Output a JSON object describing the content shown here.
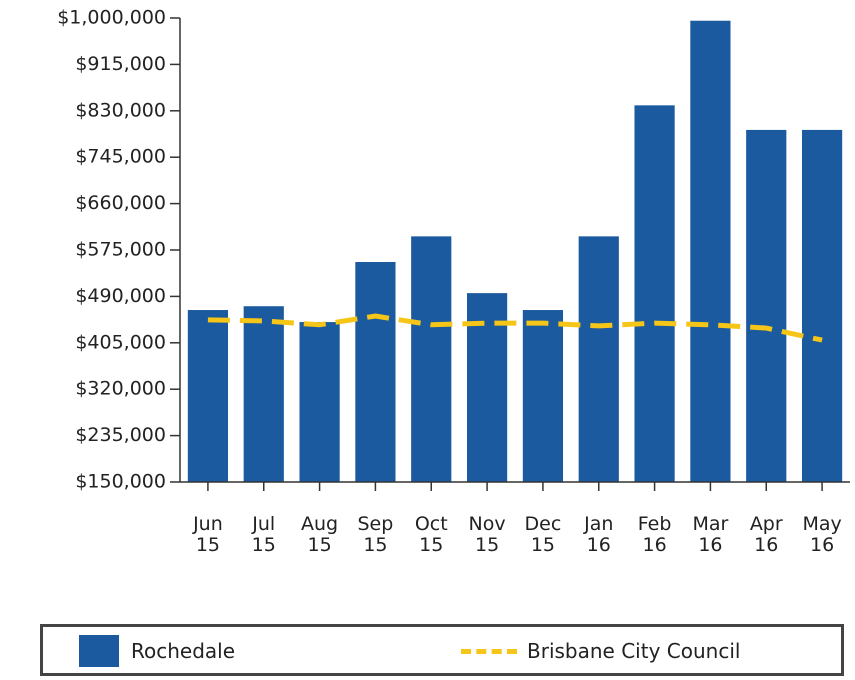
{
  "chart_data": {
    "type": "bar",
    "categories": [
      "Jun 15",
      "Jul 15",
      "Aug 15",
      "Sep 15",
      "Oct 15",
      "Nov 15",
      "Dec 15",
      "Jan 16",
      "Feb 16",
      "Mar 16",
      "Apr 16",
      "May 16"
    ],
    "series": [
      {
        "name": "Rochedale",
        "type": "bar",
        "color": "#1b5a9e",
        "values": [
          465000,
          472000,
          443000,
          553000,
          600000,
          496000,
          465000,
          600000,
          840000,
          995000,
          795000,
          795000
        ]
      },
      {
        "name": "Brisbane City Council",
        "type": "line",
        "color": "#f5c518",
        "values": [
          447000,
          445000,
          438000,
          454000,
          438000,
          441000,
          441000,
          436000,
          441000,
          438000,
          432000,
          410000
        ]
      }
    ],
    "ylim": [
      150000,
      1000000
    ],
    "yticks": [
      {
        "value": 150000,
        "label": "$150,000"
      },
      {
        "value": 235000,
        "label": "$235,000"
      },
      {
        "value": 320000,
        "label": "$320,000"
      },
      {
        "value": 405000,
        "label": "$405,000"
      },
      {
        "value": 490000,
        "label": "$490,000"
      },
      {
        "value": 575000,
        "label": "$575,000"
      },
      {
        "value": 660000,
        "label": "$660,000"
      },
      {
        "value": 745000,
        "label": "$745,000"
      },
      {
        "value": 830000,
        "label": "$830,000"
      },
      {
        "value": 915000,
        "label": "$915,000"
      },
      {
        "value": 1000000,
        "label": "$1,000,000"
      }
    ],
    "grid": false,
    "legend": "bottom"
  }
}
